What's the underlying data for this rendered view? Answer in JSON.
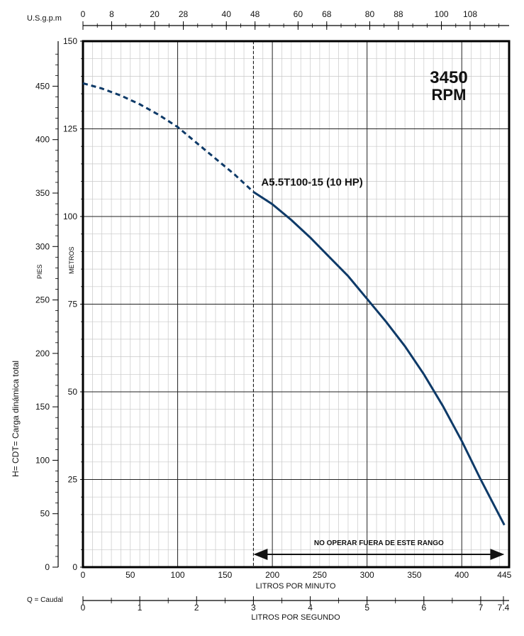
{
  "chart_data": {
    "type": "line",
    "rpm_label_line1": "3450",
    "rpm_label_line2": "RPM",
    "series": [
      {
        "name": "A5.5T100-15 (10 HP)",
        "color": "#0e3a68",
        "x_unit": "LPM",
        "y_unit": "m",
        "dashed_until_x": 180,
        "points": [
          [
            0,
            138
          ],
          [
            20,
            136.5
          ],
          [
            40,
            134.5
          ],
          [
            60,
            132
          ],
          [
            80,
            129
          ],
          [
            100,
            125.5
          ],
          [
            120,
            121
          ],
          [
            140,
            116.5
          ],
          [
            160,
            112
          ],
          [
            180,
            107
          ],
          [
            200,
            103.5
          ],
          [
            220,
            99
          ],
          [
            240,
            94
          ],
          [
            260,
            88.5
          ],
          [
            280,
            83
          ],
          [
            300,
            76.5
          ],
          [
            320,
            70
          ],
          [
            340,
            63
          ],
          [
            360,
            55
          ],
          [
            380,
            46
          ],
          [
            400,
            36
          ],
          [
            420,
            25
          ],
          [
            445,
            12
          ]
        ]
      }
    ],
    "axes": {
      "bottom_lpm": {
        "label": "LITROS POR MINUTO",
        "range": [
          0,
          450
        ],
        "ticks": [
          "0",
          "50",
          "100",
          "150",
          "200",
          "250",
          "300",
          "350",
          "400",
          "445"
        ]
      },
      "bottom_lps": {
        "prefix": "Q = Caudal",
        "label": "LITROS POR SEGUNDO",
        "ticks": [
          "0",
          "1",
          "2",
          "3",
          "4",
          "5",
          "6",
          "7",
          "7.4"
        ]
      },
      "top_gpm": {
        "label": "U.S.g.p.m",
        "ticks": [
          "0",
          "8",
          "20",
          "28",
          "40",
          "48",
          "60",
          "68",
          "80",
          "88",
          "100",
          "108"
        ]
      },
      "left_feet": {
        "label": "PIES",
        "ticks": [
          "0",
          "50",
          "100",
          "150",
          "200",
          "250",
          "300",
          "350",
          "400",
          "450"
        ]
      },
      "left_meters": {
        "label": "METROS",
        "range": [
          0,
          150
        ],
        "ticks": [
          "0",
          "25",
          "50",
          "75",
          "100",
          "125",
          "150"
        ]
      },
      "y_title": "H= CDT= Carga dinámica total"
    },
    "operating_range": {
      "label": "NO OPERAR FUERA DE ESTE RANGO",
      "from_lpm": 180,
      "to_lpm": 445
    }
  }
}
